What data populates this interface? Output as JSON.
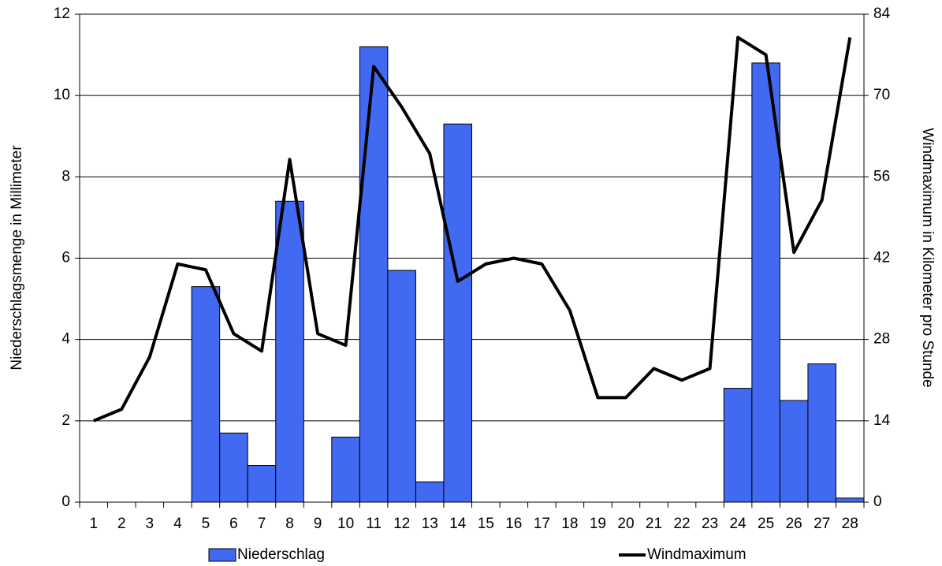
{
  "chart_data": {
    "type": "bar",
    "y_label": "Niederschlagsmenge in Millimeter",
    "y2_label": "Windmaximum in Kilometer pro Stunde",
    "categories": [
      1,
      2,
      3,
      4,
      5,
      6,
      7,
      8,
      9,
      10,
      11,
      12,
      13,
      14,
      15,
      16,
      17,
      18,
      19,
      20,
      21,
      22,
      23,
      24,
      25,
      26,
      27,
      28
    ],
    "series": [
      {
        "name": "Niederschlag",
        "type": "bar",
        "color": "#4169f2",
        "values": [
          0,
          0,
          0,
          0,
          5.3,
          1.7,
          0.9,
          7.4,
          0,
          1.6,
          11.2,
          5.7,
          0.5,
          9.3,
          0,
          0,
          0,
          0,
          0,
          0,
          0,
          0,
          0,
          2.8,
          10.8,
          2.5,
          3.4,
          0.1
        ]
      },
      {
        "name": "Windmaximum",
        "type": "line",
        "axis": "y2",
        "color": "#000000",
        "values": [
          14,
          16,
          25,
          41,
          40,
          29,
          26,
          59,
          29,
          27,
          75,
          68,
          60,
          38,
          41,
          42,
          41,
          33,
          18,
          18,
          23,
          21,
          23,
          80,
          77,
          43,
          52,
          80
        ]
      }
    ],
    "ylim": [
      0,
      12
    ],
    "yticks": [
      0,
      2,
      4,
      6,
      8,
      10,
      12
    ],
    "y2lim": [
      0,
      84
    ],
    "y2ticks": [
      0,
      14,
      28,
      42,
      56,
      70,
      84
    ],
    "grid": true,
    "legend": "bottom"
  }
}
